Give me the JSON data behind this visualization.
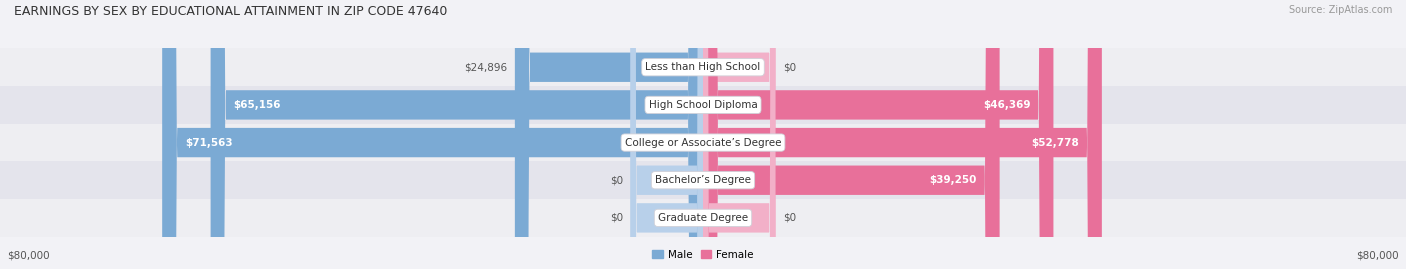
{
  "title": "EARNINGS BY SEX BY EDUCATIONAL ATTAINMENT IN ZIP CODE 47640",
  "source": "Source: ZipAtlas.com",
  "categories": [
    "Less than High School",
    "High School Diploma",
    "College or Associate’s Degree",
    "Bachelor’s Degree",
    "Graduate Degree"
  ],
  "male_values": [
    24896,
    65156,
    71563,
    0,
    0
  ],
  "female_values": [
    0,
    46369,
    52778,
    39250,
    0
  ],
  "male_color": "#7baad4",
  "female_color": "#e8709a",
  "male_color_light": "#b8d0ea",
  "female_color_light": "#f2b0c8",
  "row_bg_odd": "#eeeef2",
  "row_bg_even": "#e4e4ec",
  "max_value": 80000,
  "axis_label_left": "$80,000",
  "axis_label_right": "$80,000",
  "title_fontsize": 9,
  "label_fontsize": 7.5,
  "value_fontsize": 7.5,
  "tick_fontsize": 7.5,
  "source_fontsize": 7
}
